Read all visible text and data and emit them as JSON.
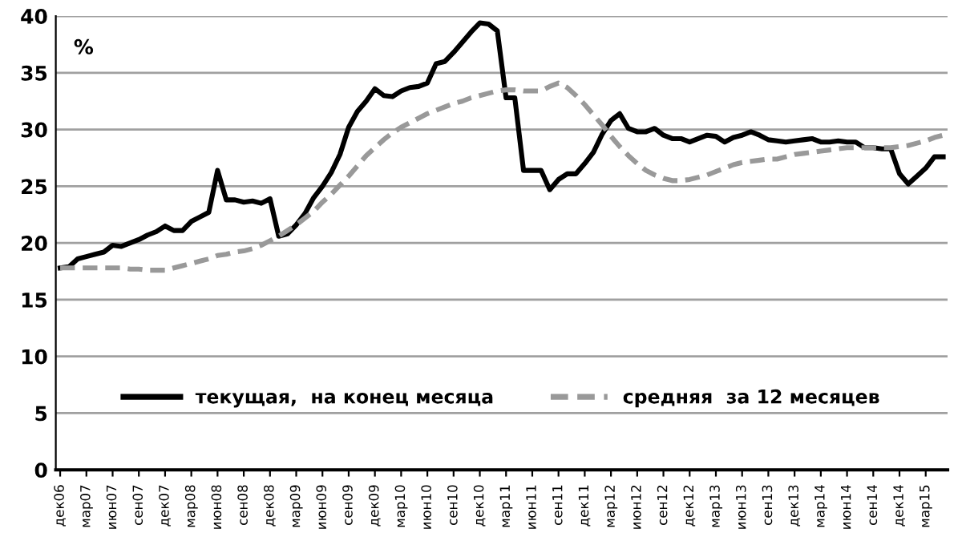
{
  "chart_data": {
    "type": "line",
    "ylabel": "%",
    "categories": [
      "дек06",
      null,
      null,
      "мар07",
      null,
      null,
      "июн07",
      null,
      null,
      "сен07",
      null,
      null,
      "дек07",
      null,
      null,
      "мар08",
      null,
      null,
      "июн08",
      null,
      null,
      "сен08",
      null,
      null,
      "дек08",
      null,
      null,
      "мар09",
      null,
      null,
      "июн09",
      null,
      null,
      "сен09",
      null,
      null,
      "дек09",
      null,
      null,
      "мар10",
      null,
      null,
      "июн10",
      null,
      null,
      "сен10",
      null,
      null,
      "дек10",
      null,
      null,
      "мар11",
      null,
      null,
      "июн11",
      null,
      null,
      "сен11",
      null,
      null,
      "дек11",
      null,
      null,
      "мар12",
      null,
      null,
      "июн12",
      null,
      null,
      "сен12",
      null,
      null,
      "дек12",
      null,
      null,
      "мар13",
      null,
      null,
      "июн13",
      null,
      null,
      "сен13",
      null,
      null,
      "дек13",
      null,
      null,
      "мар14",
      null,
      null,
      "июн14",
      null,
      null,
      "сен14",
      null,
      null,
      "дек14",
      null,
      null,
      "мар15",
      null,
      null
    ],
    "series": [
      {
        "name": "текущая,  на конец месяца",
        "color": "#000000",
        "line_style": "solid",
        "values": [
          17.8,
          17.9,
          18.6,
          18.8,
          19.0,
          19.2,
          19.8,
          19.7,
          20.0,
          20.3,
          20.7,
          21.0,
          21.5,
          21.1,
          21.1,
          21.9,
          22.3,
          22.7,
          26.4,
          23.8,
          23.8,
          23.6,
          23.7,
          23.5,
          23.9,
          20.6,
          20.8,
          21.6,
          22.6,
          24.0,
          25.0,
          26.2,
          27.8,
          30.2,
          31.6,
          32.5,
          33.6,
          33.0,
          32.9,
          33.4,
          33.7,
          33.8,
          34.1,
          35.8,
          36.0,
          36.8,
          37.7,
          38.6,
          39.4,
          39.3,
          38.7,
          32.8,
          32.8,
          26.4,
          26.4,
          26.4,
          24.7,
          25.6,
          26.1,
          26.1,
          27.0,
          28.0,
          29.6,
          30.8,
          31.4,
          30.1,
          29.8,
          29.8,
          30.1,
          29.5,
          29.2,
          29.2,
          28.9,
          29.2,
          29.5,
          29.4,
          28.9,
          29.3,
          29.5,
          29.8,
          29.5,
          29.1,
          29.0,
          28.9,
          29.0,
          29.1,
          29.2,
          28.9,
          28.9,
          29.0,
          28.9,
          28.9,
          28.4,
          28.4,
          28.3,
          28.3,
          26.1,
          25.2,
          25.9,
          26.6,
          27.6,
          27.6
        ]
      },
      {
        "name": "средняя  за 12 месяцев",
        "color": "#999999",
        "line_style": "dashed",
        "values": [
          17.8,
          17.8,
          17.8,
          17.8,
          17.8,
          17.8,
          17.8,
          17.8,
          17.7,
          17.7,
          17.6,
          17.6,
          17.6,
          17.8,
          18.0,
          18.2,
          18.4,
          18.6,
          18.9,
          19.0,
          19.2,
          19.3,
          19.5,
          19.8,
          20.2,
          20.6,
          21.1,
          21.6,
          22.2,
          22.8,
          23.6,
          24.3,
          25.1,
          25.9,
          26.8,
          27.7,
          28.4,
          29.1,
          29.7,
          30.2,
          30.6,
          31.0,
          31.4,
          31.7,
          32.0,
          32.3,
          32.5,
          32.8,
          33.0,
          33.2,
          33.4,
          33.5,
          33.5,
          33.4,
          33.4,
          33.4,
          33.8,
          34.1,
          33.7,
          33.0,
          32.2,
          31.3,
          30.4,
          29.4,
          28.5,
          27.7,
          27.0,
          26.4,
          26.0,
          25.7,
          25.5,
          25.5,
          25.6,
          25.8,
          26.0,
          26.3,
          26.6,
          26.9,
          27.1,
          27.2,
          27.3,
          27.4,
          27.4,
          27.6,
          27.8,
          27.9,
          28.0,
          28.1,
          28.2,
          28.3,
          28.4,
          28.4,
          28.4,
          28.4,
          28.4,
          28.4,
          28.5,
          28.6,
          28.8,
          29.0,
          29.3,
          29.5
        ]
      }
    ],
    "ylim": [
      0,
      40
    ],
    "yticks": [
      0,
      5,
      10,
      15,
      20,
      25,
      30,
      35,
      40
    ],
    "grid": "y",
    "legend": "bottom"
  }
}
